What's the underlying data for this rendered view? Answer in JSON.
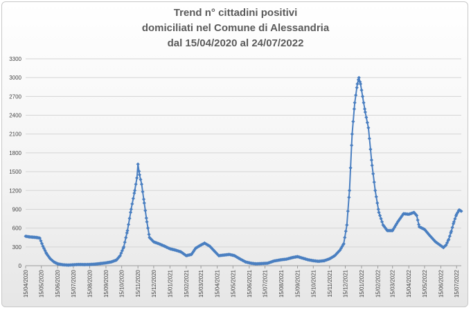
{
  "chart_data": {
    "type": "line",
    "title_lines": [
      "Trend n° cittadini positivi",
      "domiciliati nel Comune di Alessandria",
      "dal 15/04/2020 al 24/07/2022"
    ],
    "xlabel": "",
    "ylabel": "",
    "ylim": [
      0,
      3300
    ],
    "yticks": [
      0,
      300,
      600,
      900,
      1200,
      1500,
      1800,
      2100,
      2400,
      2700,
      3000,
      3300
    ],
    "xlim": [
      "15/04/2020",
      "24/07/2022"
    ],
    "xticks": [
      "15/04/2020",
      "15/05/2020",
      "15/06/2020",
      "15/07/2020",
      "15/08/2020",
      "15/09/2020",
      "15/10/2020",
      "15/11/2020",
      "15/12/2020",
      "15/01/2021",
      "15/02/2021",
      "15/03/2021",
      "15/04/2021",
      "15/05/2021",
      "15/06/2021",
      "15/07/2021",
      "15/08/2021",
      "15/09/2021",
      "15/10/2021",
      "15/11/2021",
      "15/12/2021",
      "15/01/2022",
      "15/02/2022",
      "15/03/2022",
      "15/04/2022",
      "15/05/2022",
      "15/06/2022",
      "15/07/2022"
    ],
    "grid": true,
    "legend": "none",
    "series": [
      {
        "color": "#4a7fc1",
        "marker": "diamond",
        "points": [
          [
            "15/04/2020",
            470
          ],
          [
            "22/04/2020",
            460
          ],
          [
            "29/04/2020",
            455
          ],
          [
            "06/05/2020",
            450
          ],
          [
            "12/05/2020",
            440
          ],
          [
            "18/05/2020",
            310
          ],
          [
            "25/05/2020",
            190
          ],
          [
            "01/06/2020",
            110
          ],
          [
            "08/06/2020",
            60
          ],
          [
            "15/06/2020",
            30
          ],
          [
            "25/06/2020",
            15
          ],
          [
            "05/07/2020",
            10
          ],
          [
            "15/07/2020",
            15
          ],
          [
            "25/07/2020",
            20
          ],
          [
            "05/08/2020",
            18
          ],
          [
            "15/08/2020",
            20
          ],
          [
            "25/08/2020",
            25
          ],
          [
            "05/09/2020",
            35
          ],
          [
            "15/09/2020",
            45
          ],
          [
            "25/09/2020",
            60
          ],
          [
            "05/10/2020",
            90
          ],
          [
            "12/10/2020",
            160
          ],
          [
            "19/10/2020",
            300
          ],
          [
            "26/10/2020",
            560
          ],
          [
            "02/11/2020",
            900
          ],
          [
            "09/11/2020",
            1200
          ],
          [
            "13/11/2020",
            1400
          ],
          [
            "15/11/2020",
            1620
          ],
          [
            "18/11/2020",
            1450
          ],
          [
            "22/11/2020",
            1300
          ],
          [
            "27/11/2020",
            1000
          ],
          [
            "02/12/2020",
            700
          ],
          [
            "07/12/2020",
            450
          ],
          [
            "15/12/2020",
            380
          ],
          [
            "25/12/2020",
            350
          ],
          [
            "05/01/2021",
            310
          ],
          [
            "15/01/2021",
            270
          ],
          [
            "25/01/2021",
            250
          ],
          [
            "05/02/2021",
            220
          ],
          [
            "15/02/2021",
            160
          ],
          [
            "25/02/2021",
            180
          ],
          [
            "05/03/2021",
            280
          ],
          [
            "15/03/2021",
            330
          ],
          [
            "22/03/2021",
            360
          ],
          [
            "01/04/2021",
            310
          ],
          [
            "10/04/2021",
            230
          ],
          [
            "18/04/2021",
            160
          ],
          [
            "28/04/2021",
            170
          ],
          [
            "08/05/2021",
            180
          ],
          [
            "18/05/2021",
            160
          ],
          [
            "28/05/2021",
            110
          ],
          [
            "08/06/2021",
            60
          ],
          [
            "18/06/2021",
            40
          ],
          [
            "28/06/2021",
            30
          ],
          [
            "10/07/2021",
            35
          ],
          [
            "20/07/2021",
            40
          ],
          [
            "01/08/2021",
            75
          ],
          [
            "15/08/2021",
            95
          ],
          [
            "25/08/2021",
            105
          ],
          [
            "05/09/2021",
            130
          ],
          [
            "15/09/2021",
            145
          ],
          [
            "25/09/2021",
            120
          ],
          [
            "05/10/2021",
            95
          ],
          [
            "15/10/2021",
            80
          ],
          [
            "25/10/2021",
            70
          ],
          [
            "05/11/2021",
            80
          ],
          [
            "15/11/2021",
            110
          ],
          [
            "25/11/2021",
            160
          ],
          [
            "05/12/2021",
            250
          ],
          [
            "12/12/2021",
            350
          ],
          [
            "18/12/2021",
            650
          ],
          [
            "23/12/2021",
            1200
          ],
          [
            "28/12/2021",
            2100
          ],
          [
            "02/01/2022",
            2600
          ],
          [
            "07/01/2022",
            2900
          ],
          [
            "10/01/2022",
            3000
          ],
          [
            "13/01/2022",
            2900
          ],
          [
            "17/01/2022",
            2700
          ],
          [
            "22/01/2022",
            2450
          ],
          [
            "28/01/2022",
            2200
          ],
          [
            "04/02/2022",
            1600
          ],
          [
            "10/02/2022",
            1200
          ],
          [
            "17/02/2022",
            850
          ],
          [
            "25/02/2022",
            650
          ],
          [
            "05/03/2022",
            560
          ],
          [
            "15/03/2022",
            560
          ],
          [
            "25/03/2022",
            700
          ],
          [
            "05/04/2022",
            830
          ],
          [
            "15/04/2022",
            820
          ],
          [
            "25/04/2022",
            850
          ],
          [
            "30/04/2022",
            800
          ],
          [
            "05/05/2022",
            620
          ],
          [
            "15/05/2022",
            580
          ],
          [
            "25/05/2022",
            480
          ],
          [
            "05/06/2022",
            380
          ],
          [
            "15/06/2022",
            320
          ],
          [
            "20/06/2022",
            290
          ],
          [
            "25/06/2022",
            330
          ],
          [
            "30/06/2022",
            420
          ],
          [
            "05/07/2022",
            550
          ],
          [
            "10/07/2022",
            700
          ],
          [
            "15/07/2022",
            820
          ],
          [
            "20/07/2022",
            890
          ],
          [
            "24/07/2022",
            870
          ]
        ]
      }
    ]
  }
}
